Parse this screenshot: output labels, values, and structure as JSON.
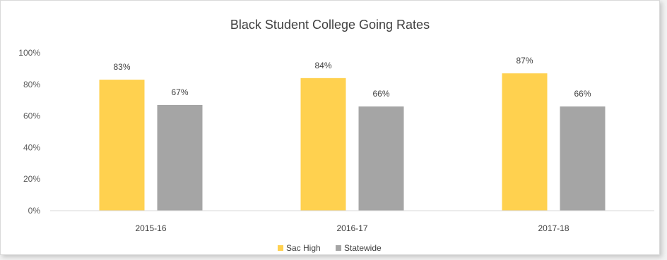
{
  "chart_data": {
    "type": "bar",
    "title": "Black Student College Going Rates",
    "categories": [
      "2015-16",
      "2016-17",
      "2017-18"
    ],
    "series": [
      {
        "name": "Sac High",
        "values": [
          83,
          84,
          87
        ],
        "labels": [
          "83%",
          "84%",
          "87%"
        ],
        "color": "#FFD14F"
      },
      {
        "name": "Statewide",
        "values": [
          67,
          66,
          66
        ],
        "labels": [
          "67%",
          "66%",
          "66%"
        ],
        "color": "#A5A5A5"
      }
    ],
    "ylim": [
      0,
      100
    ],
    "yticks": [
      0,
      20,
      40,
      60,
      80,
      100
    ],
    "ytick_labels": [
      "0%",
      "20%",
      "40%",
      "60%",
      "80%",
      "100%"
    ],
    "grid": false,
    "legend_position": "bottom"
  }
}
